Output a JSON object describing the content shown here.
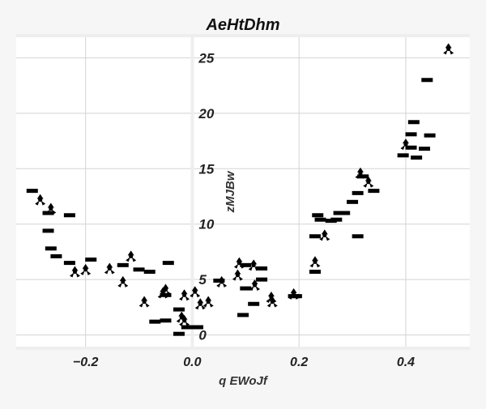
{
  "chart_data": {
    "type": "scatter",
    "title": "AeHtDhm",
    "xlabel": "q EWoJf",
    "ylabel": "zMJBw",
    "xlim": [
      -0.33,
      0.52
    ],
    "ylim": [
      -1.2,
      27.0
    ],
    "xticks": [
      -0.2,
      0.0,
      0.2,
      0.4
    ],
    "xtick_labels": [
      "−0.2",
      "0.0",
      "0.2",
      "0.4"
    ],
    "yticks": [
      0,
      5,
      10,
      15,
      20,
      25
    ],
    "ytick_labels": [
      "0",
      "5",
      "10",
      "15",
      "20",
      "25"
    ],
    "grid": true,
    "colors": {
      "background": "#ffffff",
      "page": "#f6f6f6",
      "grid": "#d3d3d3",
      "axis": "#eeeeee",
      "marker": "#000000",
      "text": "#222222"
    },
    "series": [
      {
        "marker": "dash",
        "x": [
          -0.3,
          -0.27,
          -0.27,
          -0.265,
          -0.255,
          -0.23,
          -0.23,
          -0.19,
          -0.13,
          -0.1,
          -0.08,
          -0.07,
          -0.05,
          -0.05,
          -0.045,
          -0.025,
          -0.025,
          -0.01,
          0.01,
          0.05,
          0.095,
          0.1,
          0.1,
          0.115,
          0.13,
          0.13,
          0.19,
          0.195,
          0.23,
          0.23,
          0.235,
          0.24,
          0.26,
          0.27,
          0.275,
          0.285,
          0.3,
          0.31,
          0.31,
          0.32,
          0.34,
          0.395,
          0.41,
          0.41,
          0.415,
          0.42,
          0.435,
          0.44,
          0.445
        ],
        "y": [
          13.0,
          11.0,
          9.4,
          7.8,
          7.1,
          10.8,
          6.5,
          6.8,
          6.3,
          5.9,
          5.7,
          1.2,
          3.6,
          1.3,
          6.5,
          2.3,
          0.1,
          0.7,
          0.7,
          4.9,
          1.8,
          6.3,
          4.2,
          2.8,
          6.0,
          5.0,
          3.5,
          3.5,
          8.9,
          5.7,
          10.8,
          10.4,
          10.3,
          10.4,
          11.0,
          11.0,
          12.0,
          8.9,
          12.8,
          14.3,
          13.0,
          16.2,
          18.1,
          16.9,
          19.2,
          16.0,
          16.8,
          23.0,
          18.0
        ]
      },
      {
        "marker": "tri",
        "x": [
          -0.285,
          -0.265,
          -0.22,
          -0.2,
          -0.155,
          -0.13,
          -0.115,
          -0.09,
          -0.055,
          -0.05,
          -0.02,
          -0.015,
          -0.015,
          0.005,
          0.015,
          0.03,
          0.055,
          0.085,
          0.088,
          0.115,
          0.117,
          0.148,
          0.15,
          0.19,
          0.23,
          0.248,
          0.315,
          0.33,
          0.4,
          0.48
        ],
        "y": [
          12.2,
          11.4,
          5.7,
          5.9,
          6.0,
          4.8,
          7.1,
          3.0,
          3.8,
          4.1,
          1.6,
          1.3,
          3.6,
          3.9,
          2.8,
          3.0,
          4.8,
          5.4,
          6.5,
          6.3,
          4.5,
          3.4,
          3.0,
          3.7,
          6.6,
          9.0,
          14.6,
          13.8,
          17.2,
          25.8
        ]
      }
    ]
  }
}
